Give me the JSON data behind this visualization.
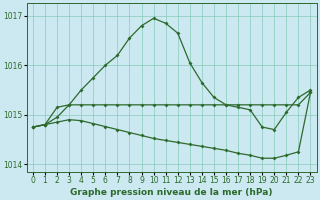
{
  "title": "Graphe pression niveau de la mer (hPa)",
  "xlabel_hours": [
    0,
    1,
    2,
    3,
    4,
    5,
    6,
    7,
    8,
    9,
    10,
    11,
    12,
    13,
    14,
    15,
    16,
    17,
    18,
    19,
    20,
    21,
    22,
    23
  ],
  "line_top": [
    1014.75,
    1014.8,
    1014.95,
    1015.2,
    1015.5,
    1015.75,
    1016.0,
    1016.2,
    1016.55,
    1016.8,
    1016.95,
    1016.85,
    1016.65,
    1016.05,
    1015.65,
    1015.35,
    1015.2,
    1015.15,
    1015.1,
    1014.75,
    1014.7,
    1015.05,
    1015.35,
    1015.5
  ],
  "line_mid": [
    1014.75,
    1014.8,
    1015.15,
    1015.2,
    1015.2,
    1015.2,
    1015.2,
    1015.2,
    1015.2,
    1015.2,
    1015.2,
    1015.2,
    1015.2,
    1015.2,
    1015.2,
    1015.2,
    1015.2,
    1015.2,
    1015.2,
    1015.2,
    1015.2,
    1015.2,
    1015.2,
    1015.45
  ],
  "line_bot": [
    1014.75,
    1014.8,
    1014.85,
    1014.9,
    1014.88,
    1014.82,
    1014.76,
    1014.7,
    1014.64,
    1014.58,
    1014.52,
    1014.48,
    1014.44,
    1014.4,
    1014.36,
    1014.32,
    1014.28,
    1014.22,
    1014.18,
    1014.12,
    1014.12,
    1014.18,
    1014.25,
    1015.45
  ],
  "bg_color": "#cce8f0",
  "line_color": "#2d6a2d",
  "grid_color": "#88ccbb",
  "ylim": [
    1013.85,
    1017.25
  ],
  "yticks": [
    1014,
    1015,
    1016,
    1017
  ],
  "ytick_labels": [
    "1014",
    "1015",
    "1016",
    "1017"
  ],
  "marker": "D",
  "markersize": 2.0,
  "linewidth": 0.9,
  "fontsize_label": 6.5,
  "fontsize_tick": 5.5
}
